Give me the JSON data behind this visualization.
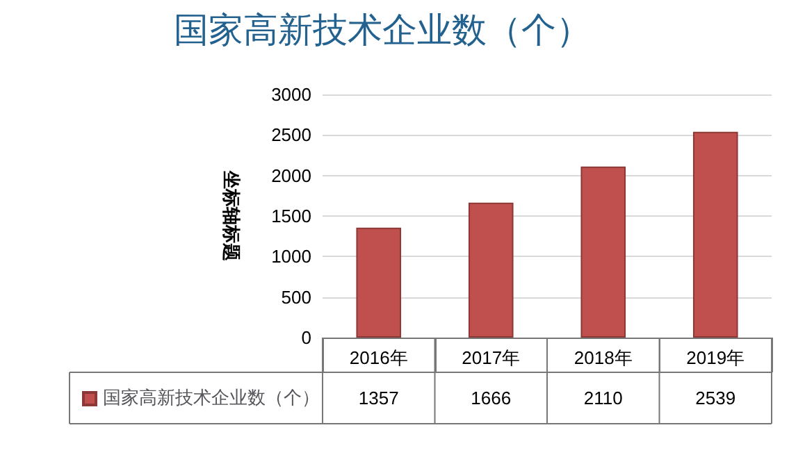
{
  "chart_data": {
    "type": "bar",
    "title": "国家高新技术企业数（个）",
    "ylabel": "坐标轴标题",
    "categories": [
      "2016年",
      "2017年",
      "2018年",
      "2019年"
    ],
    "series": [
      {
        "name": "国家高新技术企业数（个）",
        "color": "#c0504d",
        "values": [
          1357,
          1666,
          2110,
          2539
        ]
      }
    ],
    "ylim": [
      0,
      3000
    ],
    "yticks": [
      0,
      500,
      1000,
      1500,
      2000,
      2500,
      3000
    ],
    "grid": "y",
    "legend": "bottom",
    "data_labels": true
  }
}
